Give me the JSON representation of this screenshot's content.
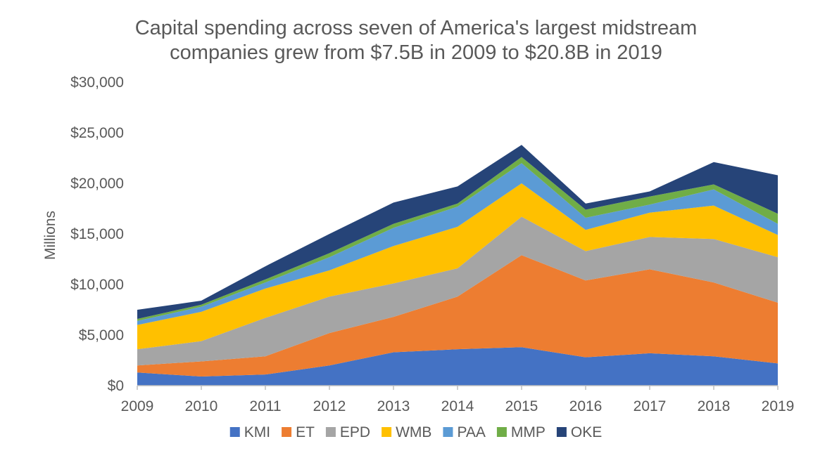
{
  "chart_data": {
    "type": "area",
    "stacked": true,
    "title_lines": [
      "Capital spending across seven of America's largest midstream",
      "companies grew from $7.5B in 2009 to $20.8B in 2019"
    ],
    "ylabel": "Millions",
    "xlabel": "",
    "categories": [
      "2009",
      "2010",
      "2011",
      "2012",
      "2013",
      "2014",
      "2015",
      "2016",
      "2017",
      "2018",
      "2019"
    ],
    "ylim": [
      0,
      30000
    ],
    "yticks": [
      0,
      5000,
      10000,
      15000,
      20000,
      25000,
      30000
    ],
    "ytick_labels": [
      "$0",
      "$5,000",
      "$10,000",
      "$15,000",
      "$20,000",
      "$25,000",
      "$30,000"
    ],
    "grid": false,
    "legend_position": "bottom",
    "series": [
      {
        "name": "KMI",
        "color": "#4472C4",
        "values": [
          1300,
          900,
          1100,
          2000,
          3300,
          3600,
          3800,
          2800,
          3200,
          2900,
          2200
        ]
      },
      {
        "name": "ET",
        "color": "#ED7D31",
        "values": [
          700,
          1500,
          1800,
          3200,
          3500,
          5200,
          9100,
          7600,
          8300,
          7300,
          6000
        ]
      },
      {
        "name": "EPD",
        "color": "#A5A5A5",
        "values": [
          1600,
          2000,
          3800,
          3600,
          3300,
          2800,
          3800,
          2900,
          3200,
          4300,
          4500
        ]
      },
      {
        "name": "WMB",
        "color": "#FFC000",
        "values": [
          2400,
          2900,
          2900,
          2600,
          3700,
          4100,
          3300,
          2100,
          2400,
          3300,
          2200
        ]
      },
      {
        "name": "PAA",
        "color": "#5B9BD5",
        "values": [
          400,
          500,
          600,
          1300,
          1800,
          2000,
          2000,
          1200,
          800,
          1600,
          1100
        ]
      },
      {
        "name": "MMP",
        "color": "#70AD47",
        "values": [
          200,
          200,
          300,
          400,
          400,
          300,
          600,
          800,
          800,
          500,
          1000
        ]
      },
      {
        "name": "OKE",
        "color": "#264478",
        "values": [
          900,
          400,
          1300,
          1900,
          2100,
          1700,
          1200,
          600,
          500,
          2200,
          3800
        ]
      }
    ]
  }
}
